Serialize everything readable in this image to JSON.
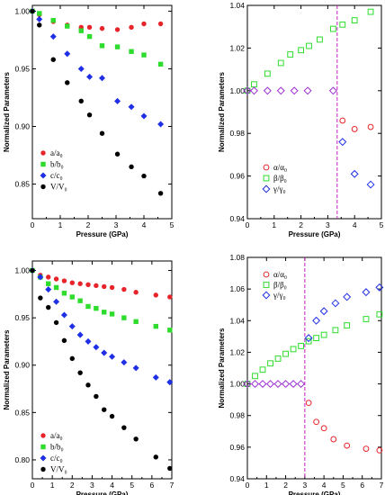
{
  "chart_data": [
    {
      "type": "scatter",
      "xlabel": "Pressure (GPa)",
      "ylabel": "Normalized Parameters",
      "xlim": [
        0,
        5
      ],
      "ylim": [
        0.82,
        1.005
      ],
      "xticks": [
        0,
        1,
        2,
        3,
        4,
        5
      ],
      "yticks": [
        0.85,
        0.9,
        0.95,
        1.0
      ],
      "ytick_labels": [
        "0.85",
        "0.90",
        "0.95",
        "1.00"
      ],
      "legend_position": "bottom-left",
      "vline": null,
      "series": [
        {
          "name": "a/a₀",
          "marker": "circle",
          "filled": true,
          "color": "#e8242b",
          "x": [
            0,
            0.25,
            0.75,
            1.25,
            1.75,
            2.05,
            2.5,
            3.05,
            3.55,
            4.0,
            4.6
          ],
          "y": [
            1.0,
            0.997,
            0.991,
            0.988,
            0.986,
            0.986,
            0.985,
            0.984,
            0.986,
            0.989,
            0.989
          ]
        },
        {
          "name": "b/b₀",
          "marker": "square",
          "filled": true,
          "color": "#2ddc2d",
          "x": [
            0,
            0.25,
            0.75,
            1.25,
            1.75,
            2.05,
            2.5,
            3.05,
            3.55,
            4.0,
            4.6
          ],
          "y": [
            1.0,
            0.998,
            0.992,
            0.987,
            0.983,
            0.978,
            0.97,
            0.969,
            0.965,
            0.962,
            0.954
          ]
        },
        {
          "name": "c/c₀",
          "marker": "diamond",
          "filled": true,
          "color": "#1f2fe6",
          "x": [
            0,
            0.25,
            0.75,
            1.25,
            1.75,
            2.05,
            2.5,
            3.05,
            3.55,
            4.0,
            4.6
          ],
          "y": [
            1.0,
            0.993,
            0.978,
            0.963,
            0.95,
            0.943,
            0.942,
            0.922,
            0.917,
            0.909,
            0.902
          ]
        },
        {
          "name": "V/V₀",
          "marker": "circle",
          "filled": true,
          "color": "#000000",
          "x": [
            0,
            0.25,
            0.75,
            1.25,
            1.75,
            2.05,
            2.5,
            3.05,
            3.55,
            4.0,
            4.6
          ],
          "y": [
            1.0,
            0.988,
            0.958,
            0.938,
            0.922,
            0.91,
            0.894,
            0.876,
            0.865,
            0.857,
            0.842
          ]
        }
      ]
    },
    {
      "type": "scatter",
      "xlabel": "Pressure (GPa)",
      "ylabel": "Normalized Parameters",
      "xlim": [
        0,
        5
      ],
      "ylim": [
        0.94,
        1.04
      ],
      "xticks": [
        0,
        1,
        2,
        3,
        4,
        5
      ],
      "yticks": [
        0.94,
        0.96,
        0.98,
        1.0,
        1.02,
        1.04
      ],
      "ytick_labels": [
        "0.94",
        "0.96",
        "0.98",
        "1.00",
        "1.02",
        "1.04"
      ],
      "legend_position": "bottom-left",
      "vline": 3.35,
      "series": [
        {
          "name": "α/α₀",
          "marker": "circle",
          "filled": false,
          "color": "#e8242b",
          "x": [
            3.55,
            4.0,
            4.6
          ],
          "y": [
            0.986,
            0.982,
            0.983
          ]
        },
        {
          "name": "β/β₀",
          "marker": "square",
          "filled": false,
          "color": "#2ddc2d",
          "x": [
            0,
            0.25,
            0.75,
            1.25,
            1.6,
            2.0,
            2.3,
            2.7,
            3.2,
            3.55,
            4.0,
            4.6
          ],
          "y": [
            1.0,
            1.003,
            1.008,
            1.013,
            1.017,
            1.019,
            1.021,
            1.024,
            1.029,
            1.031,
            1.033,
            1.037
          ]
        },
        {
          "name": "γ/γ₀",
          "marker": "diamond",
          "filled": false,
          "color": "#1f2fe6",
          "x": [
            3.55,
            4.0,
            4.6
          ],
          "y": [
            0.976,
            0.961,
            0.956
          ]
        },
        {
          "name": "",
          "marker": "diamond",
          "filled": false,
          "color": "#9b2bd0",
          "x": [
            0,
            0.25,
            0.75,
            1.25,
            1.75,
            2.25,
            3.2
          ],
          "y": [
            1.0,
            1.0,
            1.0,
            1.0,
            1.0,
            1.0,
            1.0
          ]
        }
      ]
    },
    {
      "type": "scatter",
      "xlabel": "Pressure (GPa)",
      "ylabel": "Normalized Parameters",
      "xlim": [
        0,
        7
      ],
      "ylim": [
        0.78,
        1.01
      ],
      "xticks": [
        0,
        1,
        2,
        3,
        4,
        5,
        6,
        7
      ],
      "yticks": [
        0.8,
        0.85,
        0.9,
        0.95,
        1.0
      ],
      "ytick_labels": [
        "0.80",
        "0.85",
        "0.90",
        "0.95",
        "1.00"
      ],
      "legend_position": "bottom-left",
      "vline": null,
      "series": [
        {
          "name": "a/a₀",
          "marker": "circle",
          "filled": true,
          "color": "#e8242b",
          "x": [
            0,
            0.4,
            0.8,
            1.2,
            1.6,
            2.0,
            2.4,
            2.8,
            3.2,
            3.6,
            4.0,
            4.6,
            5.2,
            6.2,
            6.9
          ],
          "y": [
            1.0,
            0.995,
            0.993,
            0.991,
            0.989,
            0.987,
            0.986,
            0.985,
            0.984,
            0.983,
            0.982,
            0.98,
            0.977,
            0.974,
            0.972
          ]
        },
        {
          "name": "b/b₀",
          "marker": "square",
          "filled": true,
          "color": "#2ddc2d",
          "x": [
            0,
            0.4,
            0.8,
            1.2,
            1.6,
            2.0,
            2.4,
            2.8,
            3.2,
            3.6,
            4.0,
            4.6,
            5.2,
            6.2,
            6.9
          ],
          "y": [
            1.0,
            0.993,
            0.986,
            0.982,
            0.976,
            0.972,
            0.968,
            0.962,
            0.96,
            0.956,
            0.954,
            0.95,
            0.946,
            0.941,
            0.937
          ]
        },
        {
          "name": "c/c₀",
          "marker": "diamond",
          "filled": true,
          "color": "#1f2fe6",
          "x": [
            0,
            0.4,
            0.8,
            1.2,
            1.6,
            2.0,
            2.4,
            2.8,
            3.2,
            3.6,
            4.0,
            4.6,
            5.2,
            6.2,
            6.9
          ],
          "y": [
            1.0,
            0.993,
            0.98,
            0.967,
            0.953,
            0.941,
            0.932,
            0.925,
            0.919,
            0.913,
            0.909,
            0.903,
            0.897,
            0.887,
            0.882
          ]
        },
        {
          "name": "V/V₀",
          "marker": "circle",
          "filled": true,
          "color": "#000000",
          "x": [
            0,
            0.4,
            0.8,
            1.2,
            1.6,
            2.0,
            2.4,
            2.8,
            3.2,
            3.6,
            4.0,
            4.6,
            5.2,
            6.2,
            6.9
          ],
          "y": [
            1.0,
            0.971,
            0.961,
            0.945,
            0.926,
            0.907,
            0.892,
            0.879,
            0.867,
            0.853,
            0.846,
            0.834,
            0.822,
            0.803,
            0.791
          ]
        }
      ]
    },
    {
      "type": "scatter",
      "xlabel": "Pressure (GPa)",
      "ylabel": "Normalized Parameters",
      "xlim": [
        0,
        7
      ],
      "ylim": [
        0.94,
        1.08
      ],
      "xticks": [
        0,
        1,
        2,
        3,
        4,
        5,
        6,
        7
      ],
      "yticks": [
        0.94,
        0.96,
        0.98,
        1.0,
        1.02,
        1.04,
        1.06,
        1.08
      ],
      "ytick_labels": [
        "0.94",
        "0.96",
        "0.98",
        "1.00",
        "1.02",
        "1.04",
        "1.06",
        "1.08"
      ],
      "legend_position": "top-left",
      "vline": 3.0,
      "series": [
        {
          "name": "α/α₀",
          "marker": "circle",
          "filled": false,
          "color": "#e8242b",
          "x": [
            3.2,
            3.6,
            4.0,
            4.5,
            5.2,
            6.2,
            6.9
          ],
          "y": [
            0.988,
            0.976,
            0.972,
            0.965,
            0.961,
            0.959,
            0.958
          ]
        },
        {
          "name": "β/β₀",
          "marker": "square",
          "filled": false,
          "color": "#2ddc2d",
          "x": [
            0,
            0.4,
            0.8,
            1.2,
            1.6,
            2.0,
            2.4,
            2.8,
            3.2,
            3.6,
            4.0,
            4.6,
            5.2,
            6.2,
            6.9
          ],
          "y": [
            1.0,
            1.005,
            1.009,
            1.013,
            1.016,
            1.019,
            1.022,
            1.024,
            1.027,
            1.029,
            1.031,
            1.034,
            1.037,
            1.041,
            1.044
          ]
        },
        {
          "name": "γ/γ₀",
          "marker": "diamond",
          "filled": false,
          "color": "#1f2fe6",
          "x": [
            3.2,
            3.6,
            4.0,
            4.6,
            5.2,
            6.2,
            6.9
          ],
          "y": [
            1.029,
            1.04,
            1.046,
            1.051,
            1.055,
            1.058,
            1.061
          ]
        },
        {
          "name": "",
          "marker": "diamond",
          "filled": false,
          "color": "#9b2bd0",
          "x": [
            0,
            0.4,
            0.8,
            1.2,
            1.6,
            2.0,
            2.4,
            2.8
          ],
          "y": [
            1.0,
            1.0,
            1.0,
            1.0,
            1.0,
            1.0,
            1.0,
            1.0
          ]
        }
      ]
    }
  ]
}
